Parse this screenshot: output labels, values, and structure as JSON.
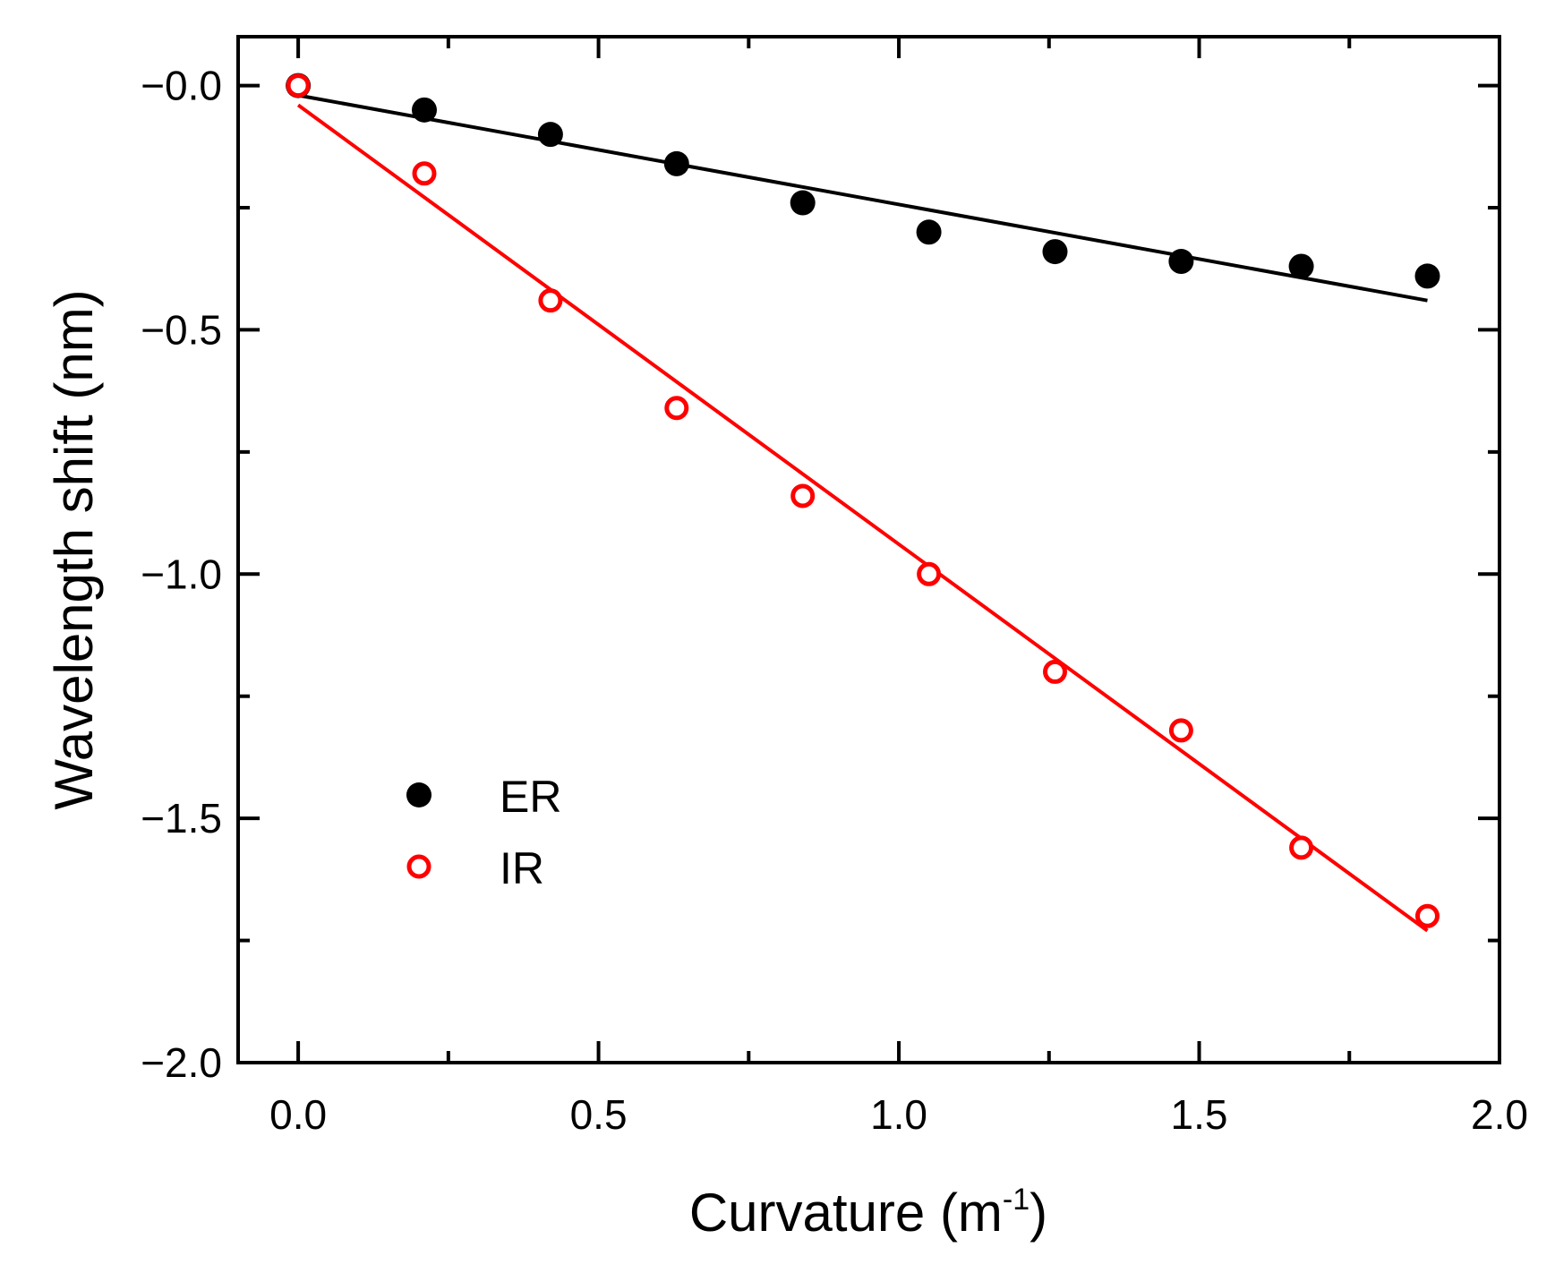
{
  "chart_data": {
    "type": "scatter",
    "xlabel": "Curvature (m",
    "xlabel_sup": "-1",
    "xlabel_close": ")",
    "ylabel": "Wavelength shift (nm)",
    "xlim": [
      -0.1,
      2.0
    ],
    "ylim": [
      -2.0,
      0.1
    ],
    "x_ticks": [
      0.0,
      0.5,
      1.0,
      1.5,
      2.0
    ],
    "x_tick_labels": [
      "0.0",
      "0.5",
      "1.0",
      "1.5",
      "2.0"
    ],
    "x_minor_ticks": [
      0.25,
      0.75,
      1.25,
      1.75
    ],
    "y_ticks": [
      0.0,
      -0.5,
      -1.0,
      -1.5,
      -2.0
    ],
    "y_tick_labels": [
      "−0.0",
      "−0.5",
      "−1.0",
      "−1.5",
      "−2.0"
    ],
    "y_minor_ticks": [
      -0.25,
      -0.75,
      -1.25,
      -1.75
    ],
    "legend_position": "lower-left",
    "series": [
      {
        "name": "ER",
        "marker": "filled-circle",
        "color": "#000000",
        "x": [
          0.0,
          0.21,
          0.42,
          0.63,
          0.84,
          1.05,
          1.26,
          1.47,
          1.67,
          1.88
        ],
        "y": [
          0.0,
          -0.05,
          -0.1,
          -0.16,
          -0.24,
          -0.3,
          -0.34,
          -0.36,
          -0.37,
          -0.39
        ],
        "fit": {
          "x": [
            0.0,
            1.88
          ],
          "y": [
            -0.02,
            -0.44
          ]
        }
      },
      {
        "name": "IR",
        "marker": "open-circle",
        "color": "#ff0000",
        "x": [
          0.0,
          0.21,
          0.42,
          0.63,
          0.84,
          1.05,
          1.26,
          1.47,
          1.67,
          1.88
        ],
        "y": [
          0.0,
          -0.18,
          -0.44,
          -0.66,
          -0.84,
          -1.0,
          -1.2,
          -1.32,
          -1.56,
          -1.7
        ],
        "fit": {
          "x": [
            0.0,
            1.88
          ],
          "y": [
            -0.04,
            -1.73
          ]
        }
      }
    ]
  }
}
